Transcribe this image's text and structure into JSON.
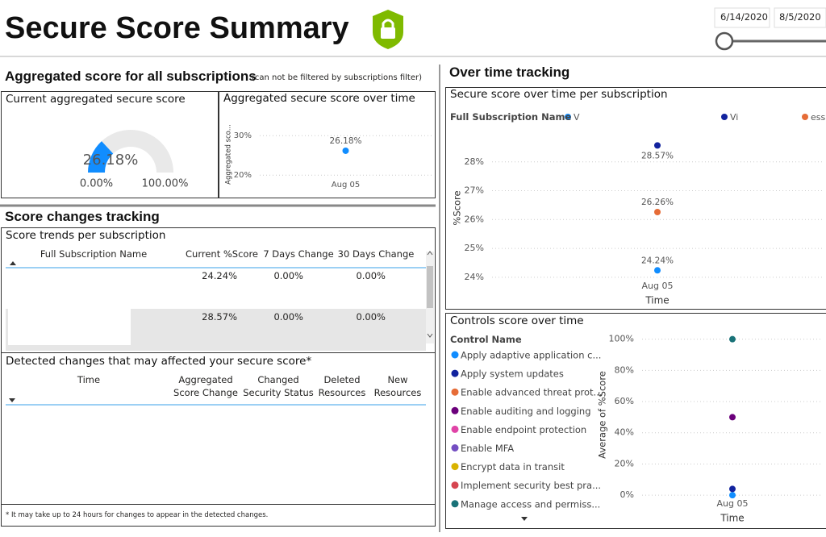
{
  "header": {
    "title": "Secure Score Summary",
    "date_start": "6/14/2020",
    "date_end": "8/5/2020"
  },
  "aggregated": {
    "heading": "Aggregated score for all subscriptions",
    "note": "(can not be filtered by subscriptions filter)",
    "gauge": {
      "type": "gauge",
      "title": "Current aggregated secure score",
      "value": 26.18,
      "value_label": "26.18%",
      "range": [
        {
          "value": 0,
          "label": "0.00%"
        },
        {
          "value": 100,
          "label": "100.00%"
        }
      ],
      "color": "#118dff"
    },
    "trend": {
      "type": "scatter",
      "title": "Aggregated secure score over time",
      "y_label": "Aggregated sco...",
      "categories": [
        "Aug 05"
      ],
      "values": [
        26.18
      ],
      "value_labels": [
        "26.18%"
      ],
      "color": "#118dff",
      "ylim": [
        18,
        32.5
      ],
      "yticks": [
        {
          "value": 20,
          "label": "20%"
        },
        {
          "value": 30,
          "label": "30%"
        }
      ],
      "grid": true
    }
  },
  "score_changes": {
    "heading": "Score changes tracking",
    "trends_table": {
      "title": "Score trends per subscription",
      "columns": [
        "Full Subscription Name",
        "Current %Score",
        "7 Days Change",
        "30 Days Change"
      ],
      "rows": [
        {
          "current": "24.24%",
          "change_7d": "0.00%",
          "change_30d": "0.00%"
        },
        {
          "current": "28.57%",
          "change_7d": "0.00%",
          "change_30d": "0.00%"
        }
      ]
    },
    "detected_table": {
      "title": "Detected changes that may affected your secure score*",
      "columns": [
        "Time",
        "Aggregated Score Change",
        "Changed Security Status",
        "Deleted Resources",
        "New Resources"
      ],
      "footnote": "* It may take up to 24 hours for changes to appear in the detected changes."
    }
  },
  "over_time": {
    "heading": "Over time tracking",
    "per_subscription": {
      "type": "scatter",
      "title": "Secure score over time per subscription",
      "legend_title": "Full Subscription Name",
      "x_label": "Time",
      "y_label": "%Score",
      "categories": [
        "Aug 05"
      ],
      "series": [
        {
          "name": "V",
          "color": "#118dff",
          "values": [
            24.24
          ],
          "value_labels": [
            "24.24%"
          ]
        },
        {
          "name": "Vi",
          "color": "#12239e",
          "values": [
            28.57
          ],
          "value_labels": [
            "28.57%"
          ]
        },
        {
          "name": "essi",
          "color": "#e66c37",
          "values": [
            26.26
          ],
          "value_labels": [
            "26.26%"
          ]
        }
      ],
      "ylim": [
        23.8,
        29
      ],
      "yticks": [
        {
          "value": 24,
          "label": "24%"
        },
        {
          "value": 25,
          "label": "25%"
        },
        {
          "value": 26,
          "label": "26%"
        },
        {
          "value": 27,
          "label": "27%"
        },
        {
          "value": 28,
          "label": "28%"
        }
      ],
      "grid": true
    },
    "controls": {
      "type": "scatter",
      "title": "Controls score over time",
      "legend_title": "Control Name",
      "x_label": "Time",
      "y_label": "Average of %Score",
      "categories": [
        "Aug 05"
      ],
      "series": [
        {
          "name": "Apply adaptive application c...",
          "color": "#118dff",
          "values": [
            0
          ]
        },
        {
          "name": "Apply system updates",
          "color": "#12239e",
          "values": [
            4
          ]
        },
        {
          "name": "Enable advanced threat prot...",
          "color": "#e66c37",
          "values": [
            null
          ]
        },
        {
          "name": "Enable auditing and logging",
          "color": "#6b007b",
          "values": [
            50
          ]
        },
        {
          "name": "Enable endpoint protection",
          "color": "#e044a7",
          "values": [
            null
          ]
        },
        {
          "name": "Enable MFA",
          "color": "#744ec2",
          "values": [
            null
          ]
        },
        {
          "name": "Encrypt data in transit",
          "color": "#d9b300",
          "values": [
            null
          ]
        },
        {
          "name": "Implement security best pra...",
          "color": "#d64550",
          "values": [
            null
          ]
        },
        {
          "name": "Manage access and permiss...",
          "color": "#197278",
          "values": [
            100
          ]
        }
      ],
      "ylim": [
        -2,
        105
      ],
      "yticks": [
        {
          "value": 0,
          "label": "0%"
        },
        {
          "value": 20,
          "label": "20%"
        },
        {
          "value": 40,
          "label": "40%"
        },
        {
          "value": 60,
          "label": "60%"
        },
        {
          "value": 80,
          "label": "80%"
        },
        {
          "value": 100,
          "label": "100%"
        }
      ],
      "grid": true
    }
  }
}
